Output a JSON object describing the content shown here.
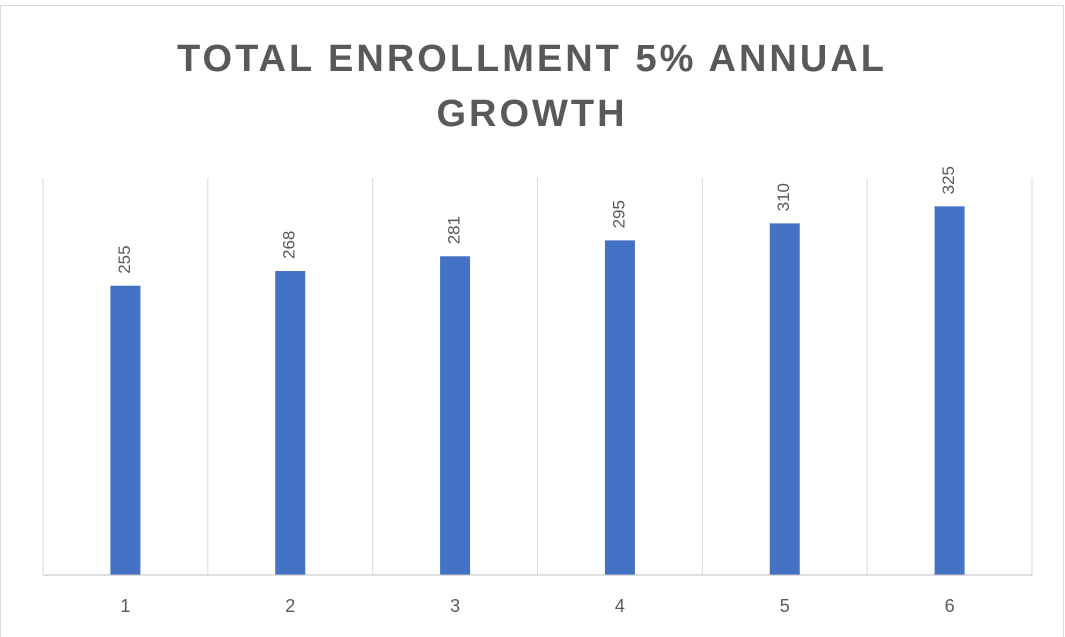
{
  "chart_data": {
    "type": "bar",
    "title": "TOTAL ENROLLMENT 5% ANNUAL GROWTH",
    "categories": [
      "1",
      "2",
      "3",
      "4",
      "5",
      "6"
    ],
    "values": [
      255,
      268,
      281,
      295,
      310,
      325
    ],
    "color": "#4472c4",
    "ylim": [
      0,
      350
    ]
  }
}
